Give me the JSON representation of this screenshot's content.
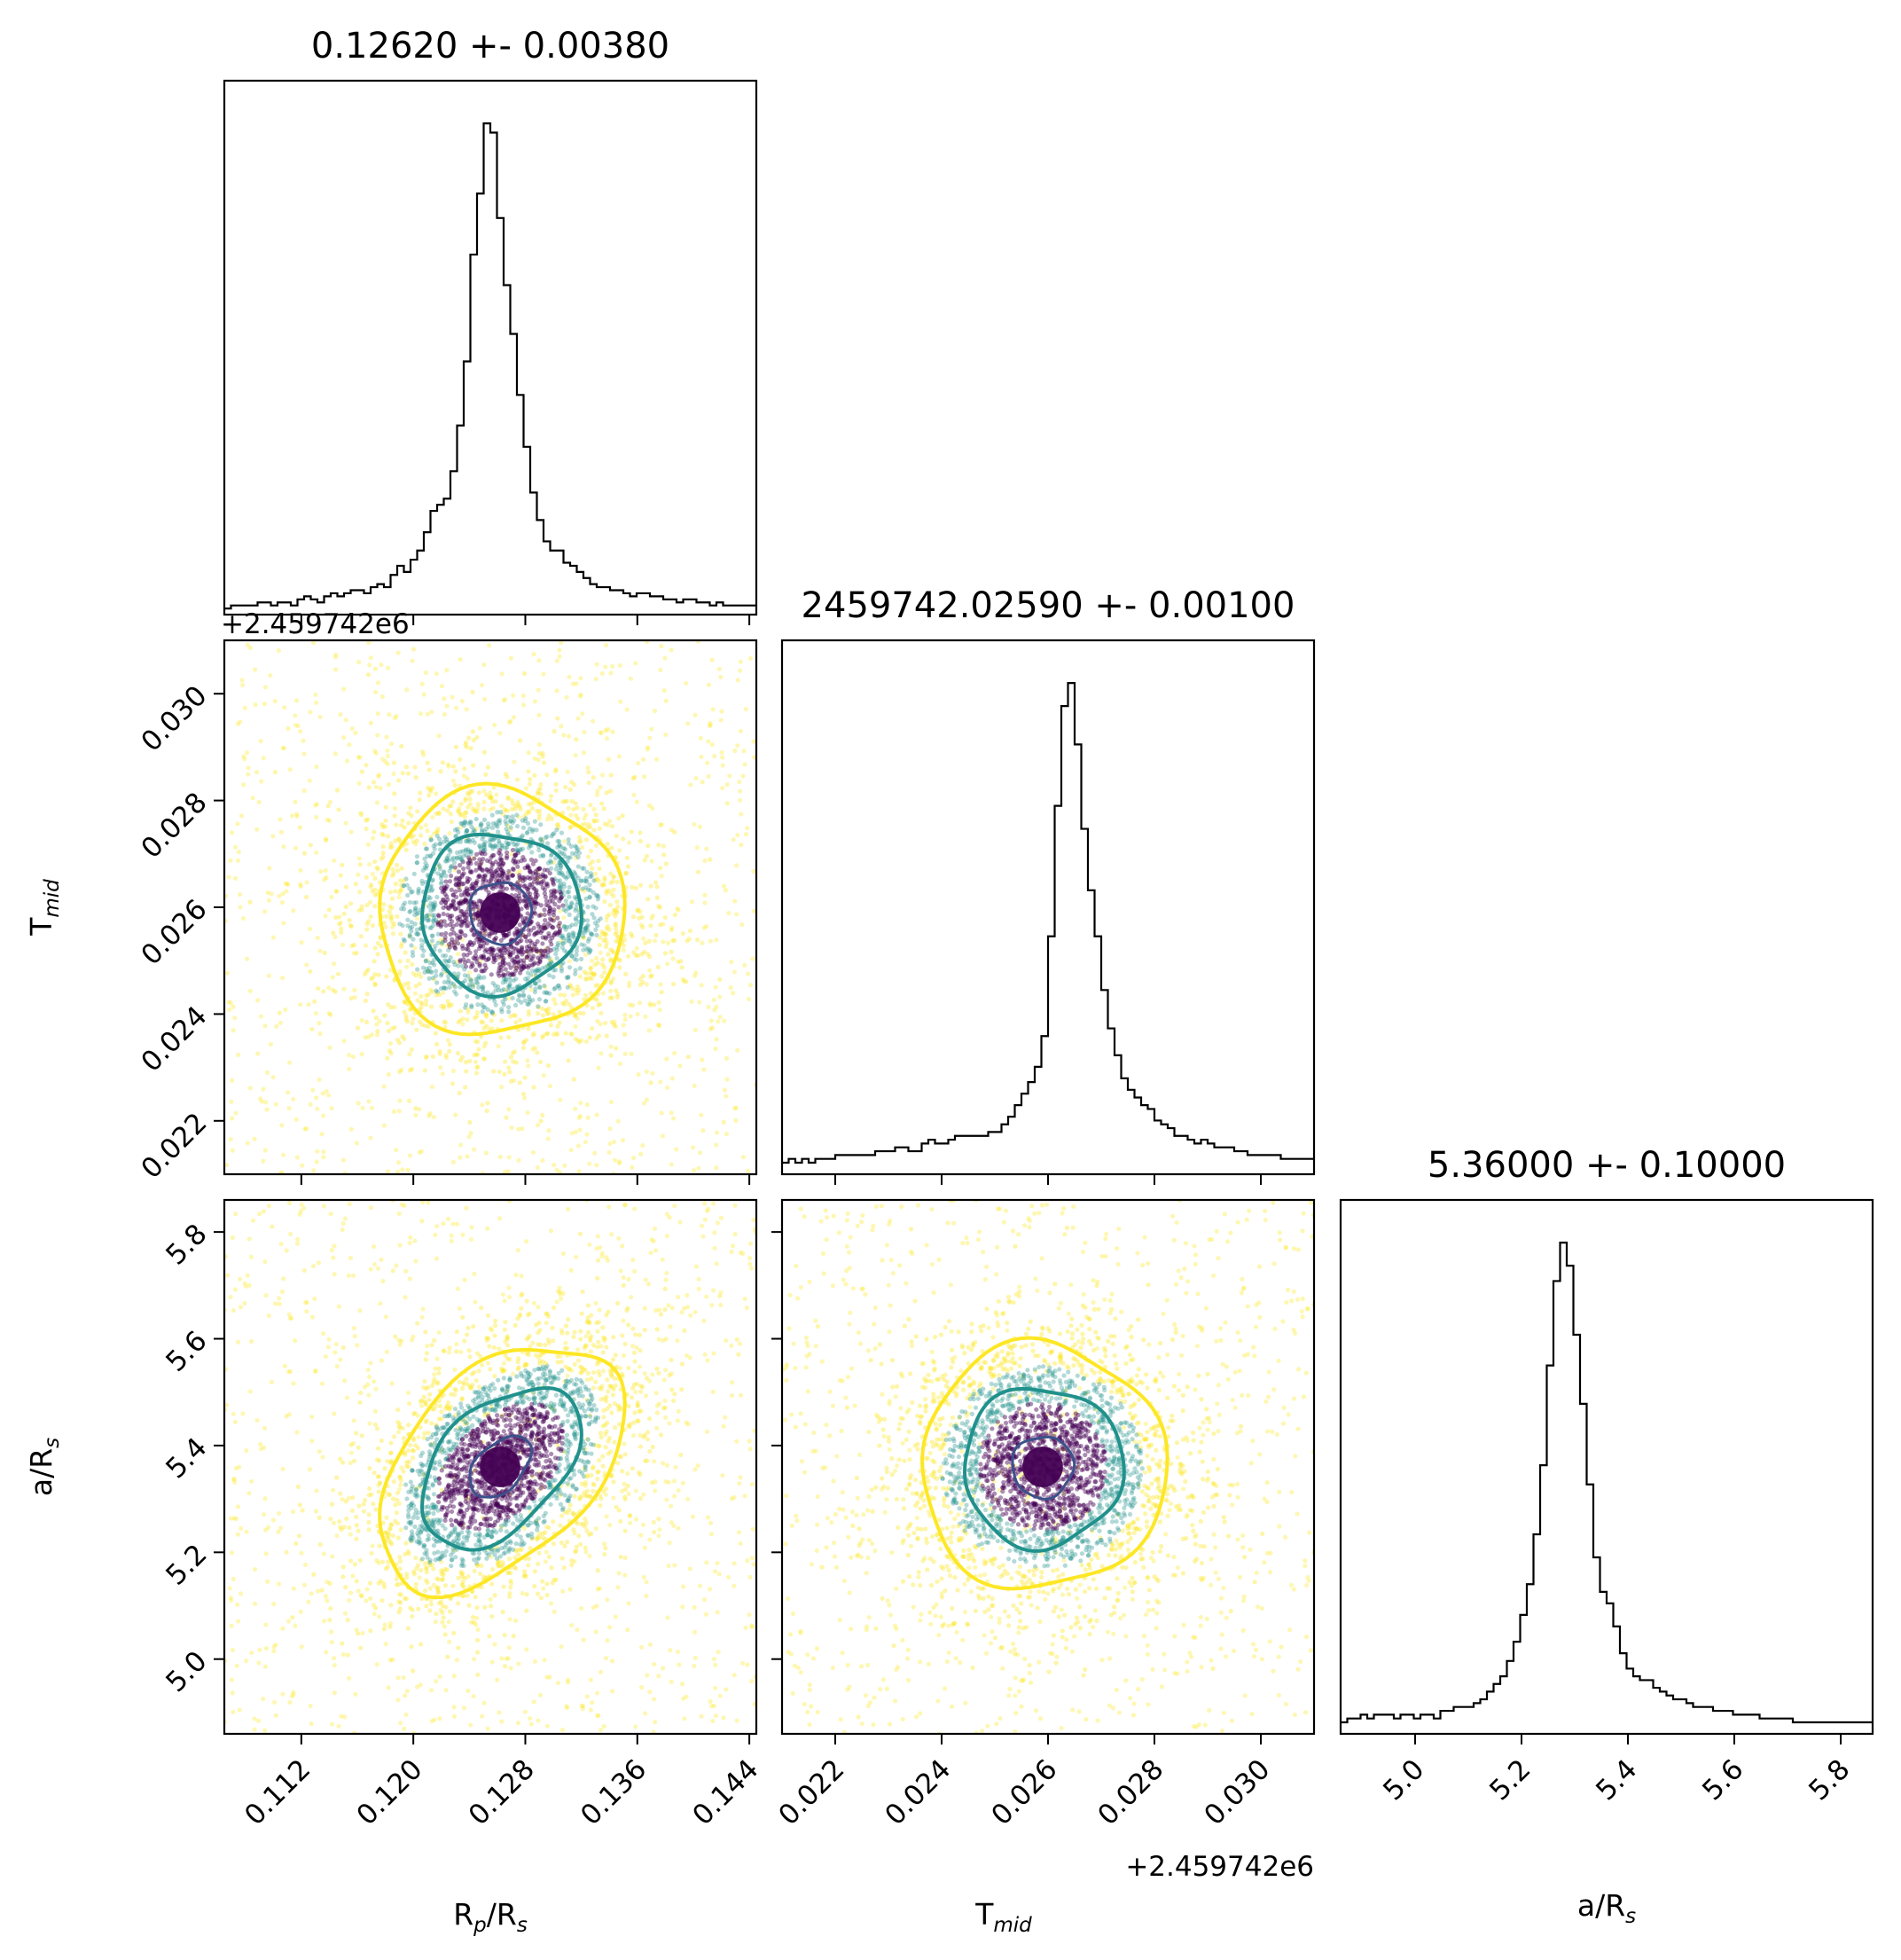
{
  "chart_data": {
    "type": "corner",
    "parameters": [
      {
        "key": "rp",
        "label_main": "R",
        "label_sub1": "p",
        "label_mid": "/R",
        "label_sub2": "s",
        "title": "0.12620 +- 0.00380",
        "range": [
          0.1065,
          0.1445
        ],
        "ticks": [
          "0.112",
          "0.120",
          "0.128",
          "0.136",
          "0.144"
        ],
        "tick_values": [
          0.112,
          0.12,
          0.128,
          0.136,
          0.144
        ],
        "median": 0.1262,
        "sigma": 0.0038,
        "offset_label": ""
      },
      {
        "key": "tmid",
        "label_main": "T",
        "label_sub1": "mid",
        "label_mid": "",
        "label_sub2": "",
        "title": "2459742.02590 +- 0.00100",
        "range": [
          0.021,
          0.031
        ],
        "ticks": [
          "0.022",
          "0.024",
          "0.026",
          "0.028",
          "0.030"
        ],
        "tick_values": [
          0.022,
          0.024,
          0.026,
          0.028,
          0.03
        ],
        "median": 0.0259,
        "sigma": 0.001,
        "offset_label": "+2.459742e6"
      },
      {
        "key": "ars",
        "label_main": "a/R",
        "label_sub1": "s",
        "label_mid": "",
        "label_sub2": "",
        "title": "5.36000 +- 0.10000",
        "range": [
          4.86,
          5.86
        ],
        "ticks": [
          "5.0",
          "5.2",
          "5.4",
          "5.6",
          "5.8"
        ],
        "tick_values": [
          5.0,
          5.2,
          5.4,
          5.6,
          5.8
        ],
        "median": 5.36,
        "sigma": 0.1,
        "offset_label": ""
      }
    ],
    "histograms": {
      "rp": [
        2,
        3,
        3,
        3,
        3,
        4,
        4,
        3,
        4,
        4,
        3,
        5,
        6,
        5,
        4,
        6,
        7,
        6,
        7,
        8,
        8,
        7,
        9,
        10,
        9,
        13,
        16,
        14,
        18,
        21,
        27,
        34,
        36,
        38,
        47,
        62,
        83,
        118,
        138,
        161,
        158,
        130,
        108,
        92,
        72,
        55,
        40,
        31,
        24,
        21,
        21,
        17,
        16,
        14,
        12,
        10,
        9,
        9,
        8,
        8,
        7,
        6,
        7,
        7,
        6,
        6,
        5,
        5,
        4,
        5,
        5,
        4,
        4,
        3,
        4,
        3,
        3,
        3,
        3,
        3
      ],
      "tmid": [
        3,
        4,
        3,
        4,
        3,
        4,
        4,
        4,
        5,
        5,
        5,
        5,
        5,
        5,
        6,
        6,
        6,
        7,
        7,
        6,
        6,
        8,
        9,
        8,
        8,
        9,
        10,
        10,
        10,
        10,
        10,
        11,
        11,
        13,
        15,
        18,
        21,
        24,
        28,
        36,
        62,
        96,
        122,
        128,
        112,
        90,
        74,
        62,
        48,
        38,
        31,
        25,
        22,
        20,
        18,
        17,
        14,
        13,
        12,
        10,
        10,
        9,
        8,
        9,
        8,
        7,
        7,
        7,
        6,
        6,
        5,
        5,
        5,
        5,
        5,
        4,
        4,
        4,
        4,
        4
      ],
      "ars": [
        3,
        4,
        4,
        5,
        4,
        5,
        5,
        5,
        4,
        5,
        5,
        4,
        5,
        5,
        4,
        6,
        6,
        7,
        7,
        7,
        8,
        9,
        11,
        13,
        15,
        19,
        24,
        31,
        39,
        52,
        70,
        96,
        118,
        128,
        122,
        104,
        86,
        65,
        46,
        37,
        34,
        28,
        21,
        17,
        15,
        14,
        14,
        12,
        11,
        10,
        9,
        9,
        8,
        7,
        7,
        7,
        6,
        6,
        6,
        5,
        5,
        5,
        5,
        4,
        4,
        4,
        4,
        4,
        3,
        3,
        3,
        3,
        3,
        3,
        3,
        3,
        3,
        3,
        3,
        3
      ]
    },
    "pairs": [
      {
        "x": "rp",
        "y": "tmid",
        "corr": 0.0
      },
      {
        "x": "rp",
        "y": "ars",
        "corr": 0.45
      },
      {
        "x": "tmid",
        "y": "ars",
        "corr": 0.0
      }
    ],
    "contour_levels_sigma": [
      0.5,
      1.3,
      2.0
    ],
    "colors": {
      "points_inner": "#440154",
      "points_mid": "#21918c",
      "points_outer": "#fde725",
      "contour_inner": "#3b528b",
      "contour_mid": "#21918c",
      "contour_outer": "#fde725",
      "histogram": "#000000"
    },
    "grid": false
  }
}
